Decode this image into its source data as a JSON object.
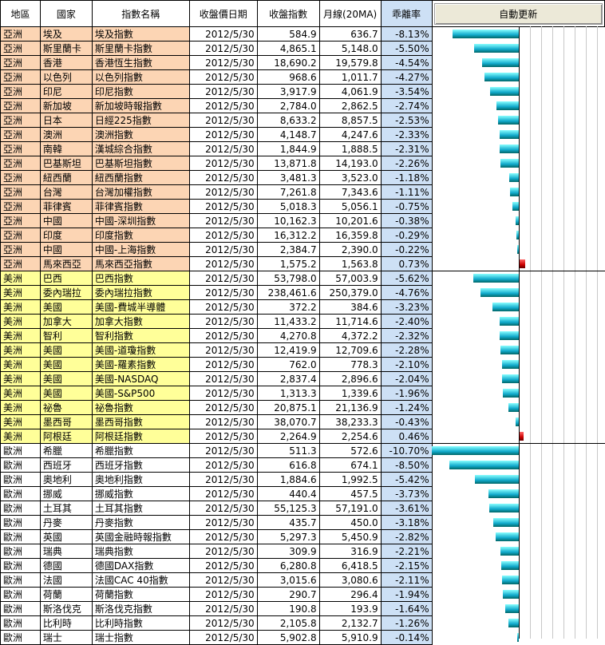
{
  "header": {
    "region": "地區",
    "country": "國家",
    "index_name": "指數名稱",
    "close_date": "收盤價日期",
    "close_index": "收盤指數",
    "ma20": "月線(20MA)",
    "deviation": "乖離率",
    "update_button": "自動更新"
  },
  "rows": [
    {
      "region": "亞洲",
      "country": "埃及",
      "name": "埃及指數",
      "date": "2012/5/30",
      "close": "584.9",
      "ma": "636.7",
      "dev": "-8.13%",
      "v": -8.13,
      "g": "asia"
    },
    {
      "region": "亞洲",
      "country": "斯里蘭卡",
      "name": "斯里蘭卡指數",
      "date": "2012/5/30",
      "close": "4,865.1",
      "ma": "5,148.0",
      "dev": "-5.50%",
      "v": -5.5,
      "g": "asia"
    },
    {
      "region": "亞洲",
      "country": "香港",
      "name": "香港恆生指數",
      "date": "2012/5/30",
      "close": "18,690.2",
      "ma": "19,579.8",
      "dev": "-4.54%",
      "v": -4.54,
      "g": "asia"
    },
    {
      "region": "亞洲",
      "country": "以色列",
      "name": "以色列指數",
      "date": "2012/5/30",
      "close": "968.6",
      "ma": "1,011.7",
      "dev": "-4.27%",
      "v": -4.27,
      "g": "asia"
    },
    {
      "region": "亞洲",
      "country": "印尼",
      "name": "印尼指數",
      "date": "2012/5/30",
      "close": "3,917.9",
      "ma": "4,061.9",
      "dev": "-3.54%",
      "v": -3.54,
      "g": "asia"
    },
    {
      "region": "亞洲",
      "country": "新加坡",
      "name": "新加坡時報指數",
      "date": "2012/5/30",
      "close": "2,784.0",
      "ma": "2,862.5",
      "dev": "-2.74%",
      "v": -2.74,
      "g": "asia"
    },
    {
      "region": "亞洲",
      "country": "日本",
      "name": "日經225指數",
      "date": "2012/5/30",
      "close": "8,633.2",
      "ma": "8,857.5",
      "dev": "-2.53%",
      "v": -2.53,
      "g": "asia"
    },
    {
      "region": "亞洲",
      "country": "澳洲",
      "name": "澳洲指數",
      "date": "2012/5/30",
      "close": "4,148.7",
      "ma": "4,247.6",
      "dev": "-2.33%",
      "v": -2.33,
      "g": "asia"
    },
    {
      "region": "亞洲",
      "country": "南韓",
      "name": "漢城綜合指數",
      "date": "2012/5/30",
      "close": "1,844.9",
      "ma": "1,888.5",
      "dev": "-2.31%",
      "v": -2.31,
      "g": "asia"
    },
    {
      "region": "亞洲",
      "country": "巴基斯坦",
      "name": "巴基斯坦指數",
      "date": "2012/5/30",
      "close": "13,871.8",
      "ma": "14,193.0",
      "dev": "-2.26%",
      "v": -2.26,
      "g": "asia"
    },
    {
      "region": "亞洲",
      "country": "紐西蘭",
      "name": "紐西蘭指數",
      "date": "2012/5/30",
      "close": "3,481.3",
      "ma": "3,523.0",
      "dev": "-1.18%",
      "v": -1.18,
      "g": "asia"
    },
    {
      "region": "亞洲",
      "country": "台灣",
      "name": "台灣加權指數",
      "date": "2012/5/30",
      "close": "7,261.8",
      "ma": "7,343.6",
      "dev": "-1.11%",
      "v": -1.11,
      "g": "asia"
    },
    {
      "region": "亞洲",
      "country": "菲律賓",
      "name": "菲律賓指數",
      "date": "2012/5/30",
      "close": "5,018.3",
      "ma": "5,056.1",
      "dev": "-0.75%",
      "v": -0.75,
      "g": "asia"
    },
    {
      "region": "亞洲",
      "country": "中國",
      "name": "中國-深圳指數",
      "date": "2012/5/30",
      "close": "10,162.3",
      "ma": "10,201.6",
      "dev": "-0.38%",
      "v": -0.38,
      "g": "asia"
    },
    {
      "region": "亞洲",
      "country": "印度",
      "name": "印度指數",
      "date": "2012/5/30",
      "close": "16,312.2",
      "ma": "16,359.8",
      "dev": "-0.29%",
      "v": -0.29,
      "g": "asia"
    },
    {
      "region": "亞洲",
      "country": "中國",
      "name": "中國-上海指數",
      "date": "2012/5/30",
      "close": "2,384.7",
      "ma": "2,390.0",
      "dev": "-0.22%",
      "v": -0.22,
      "g": "asia"
    },
    {
      "region": "亞洲",
      "country": "馬來西亞",
      "name": "馬來西亞指數",
      "date": "2012/5/30",
      "close": "1,575.2",
      "ma": "1,563.8",
      "dev": "0.73%",
      "v": 0.73,
      "g": "asia"
    },
    {
      "region": "美洲",
      "country": "巴西",
      "name": "巴西指數",
      "date": "2012/5/30",
      "close": "53,798.0",
      "ma": "57,003.9",
      "dev": "-5.62%",
      "v": -5.62,
      "g": "america"
    },
    {
      "region": "美洲",
      "country": "委內瑞拉",
      "name": "委內瑞拉指數",
      "date": "2012/5/30",
      "close": "238,461.6",
      "ma": "250,379.0",
      "dev": "-4.76%",
      "v": -4.76,
      "g": "america"
    },
    {
      "region": "美洲",
      "country": "美國",
      "name": "美國-費城半導體",
      "date": "2012/5/30",
      "close": "372.2",
      "ma": "384.6",
      "dev": "-3.23%",
      "v": -3.23,
      "g": "america"
    },
    {
      "region": "美洲",
      "country": "加拿大",
      "name": "加拿大指數",
      "date": "2012/5/30",
      "close": "11,433.2",
      "ma": "11,714.6",
      "dev": "-2.40%",
      "v": -2.4,
      "g": "america"
    },
    {
      "region": "美洲",
      "country": "智利",
      "name": "智利指數",
      "date": "2012/5/30",
      "close": "4,270.8",
      "ma": "4,372.2",
      "dev": "-2.32%",
      "v": -2.32,
      "g": "america"
    },
    {
      "region": "美洲",
      "country": "美國",
      "name": "美國-道瓊指數",
      "date": "2012/5/30",
      "close": "12,419.9",
      "ma": "12,709.6",
      "dev": "-2.28%",
      "v": -2.28,
      "g": "america"
    },
    {
      "region": "美洲",
      "country": "美國",
      "name": "美國-羅素指數",
      "date": "2012/5/30",
      "close": "762.0",
      "ma": "778.3",
      "dev": "-2.10%",
      "v": -2.1,
      "g": "america"
    },
    {
      "region": "美洲",
      "country": "美國",
      "name": "美國-NASDAQ",
      "date": "2012/5/30",
      "close": "2,837.4",
      "ma": "2,896.6",
      "dev": "-2.04%",
      "v": -2.04,
      "g": "america"
    },
    {
      "region": "美洲",
      "country": "美國",
      "name": "美國-S&P500",
      "date": "2012/5/30",
      "close": "1,313.3",
      "ma": "1,339.6",
      "dev": "-1.96%",
      "v": -1.96,
      "g": "america"
    },
    {
      "region": "美洲",
      "country": "祕魯",
      "name": "祕魯指數",
      "date": "2012/5/30",
      "close": "20,875.1",
      "ma": "21,136.9",
      "dev": "-1.24%",
      "v": -1.24,
      "g": "america"
    },
    {
      "region": "美洲",
      "country": "墨西哥",
      "name": "墨西哥指數",
      "date": "2012/5/30",
      "close": "38,070.7",
      "ma": "38,233.3",
      "dev": "-0.43%",
      "v": -0.43,
      "g": "america"
    },
    {
      "region": "美洲",
      "country": "阿根廷",
      "name": "阿根廷指數",
      "date": "2012/5/30",
      "close": "2,264.9",
      "ma": "2,254.6",
      "dev": "0.46%",
      "v": 0.46,
      "g": "america"
    },
    {
      "region": "歐洲",
      "country": "希臘",
      "name": "希臘指數",
      "date": "2012/5/30",
      "close": "511.3",
      "ma": "572.6",
      "dev": "-10.70%",
      "v": -10.7,
      "g": "europe"
    },
    {
      "region": "歐洲",
      "country": "西班牙",
      "name": "西班牙指數",
      "date": "2012/5/30",
      "close": "616.8",
      "ma": "674.1",
      "dev": "-8.50%",
      "v": -8.5,
      "g": "europe"
    },
    {
      "region": "歐洲",
      "country": "奧地利",
      "name": "奧地利指數",
      "date": "2012/5/30",
      "close": "1,884.6",
      "ma": "1,992.5",
      "dev": "-5.42%",
      "v": -5.42,
      "g": "europe"
    },
    {
      "region": "歐洲",
      "country": "挪威",
      "name": "挪威指數",
      "date": "2012/5/30",
      "close": "440.4",
      "ma": "457.5",
      "dev": "-3.73%",
      "v": -3.73,
      "g": "europe"
    },
    {
      "region": "歐洲",
      "country": "土耳其",
      "name": "土耳其指數",
      "date": "2012/5/30",
      "close": "55,125.3",
      "ma": "57,191.0",
      "dev": "-3.61%",
      "v": -3.61,
      "g": "europe"
    },
    {
      "region": "歐洲",
      "country": "丹麥",
      "name": "丹麥指數",
      "date": "2012/5/30",
      "close": "435.7",
      "ma": "450.0",
      "dev": "-3.18%",
      "v": -3.18,
      "g": "europe"
    },
    {
      "region": "歐洲",
      "country": "英國",
      "name": "英國金融時報指數",
      "date": "2012/5/30",
      "close": "5,297.3",
      "ma": "5,450.9",
      "dev": "-2.82%",
      "v": -2.82,
      "g": "europe"
    },
    {
      "region": "歐洲",
      "country": "瑞典",
      "name": "瑞典指數",
      "date": "2012/5/30",
      "close": "309.9",
      "ma": "316.9",
      "dev": "-2.21%",
      "v": -2.21,
      "g": "europe"
    },
    {
      "region": "歐洲",
      "country": "德國",
      "name": "德國DAX指數",
      "date": "2012/5/30",
      "close": "6,280.8",
      "ma": "6,418.5",
      "dev": "-2.15%",
      "v": -2.15,
      "g": "europe"
    },
    {
      "region": "歐洲",
      "country": "法國",
      "name": "法國CAC 40指數",
      "date": "2012/5/30",
      "close": "3,015.6",
      "ma": "3,080.6",
      "dev": "-2.11%",
      "v": -2.11,
      "g": "europe"
    },
    {
      "region": "歐洲",
      "country": "荷蘭",
      "name": "荷蘭指數",
      "date": "2012/5/30",
      "close": "290.7",
      "ma": "296.4",
      "dev": "-1.94%",
      "v": -1.94,
      "g": "europe"
    },
    {
      "region": "歐洲",
      "country": "斯洛伐克",
      "name": "斯洛伐克指數",
      "date": "2012/5/30",
      "close": "190.8",
      "ma": "193.9",
      "dev": "-1.64%",
      "v": -1.64,
      "g": "europe"
    },
    {
      "region": "歐洲",
      "country": "比利時",
      "name": "比利時指數",
      "date": "2012/5/30",
      "close": "2,105.8",
      "ma": "2,132.7",
      "dev": "-1.26%",
      "v": -1.26,
      "g": "europe"
    },
    {
      "region": "歐洲",
      "country": "瑞士",
      "name": "瑞士指數",
      "date": "2012/5/30",
      "close": "5,902.8",
      "ma": "5,910.9",
      "dev": "-0.14%",
      "v": -0.14,
      "g": "europe"
    }
  ],
  "chart_data": {
    "type": "bar",
    "orientation": "horizontal",
    "xlim": [
      -10.7,
      0.73
    ],
    "grid": true,
    "colors": {
      "negative": "#22b8c8",
      "positive": "#cc0000"
    }
  }
}
